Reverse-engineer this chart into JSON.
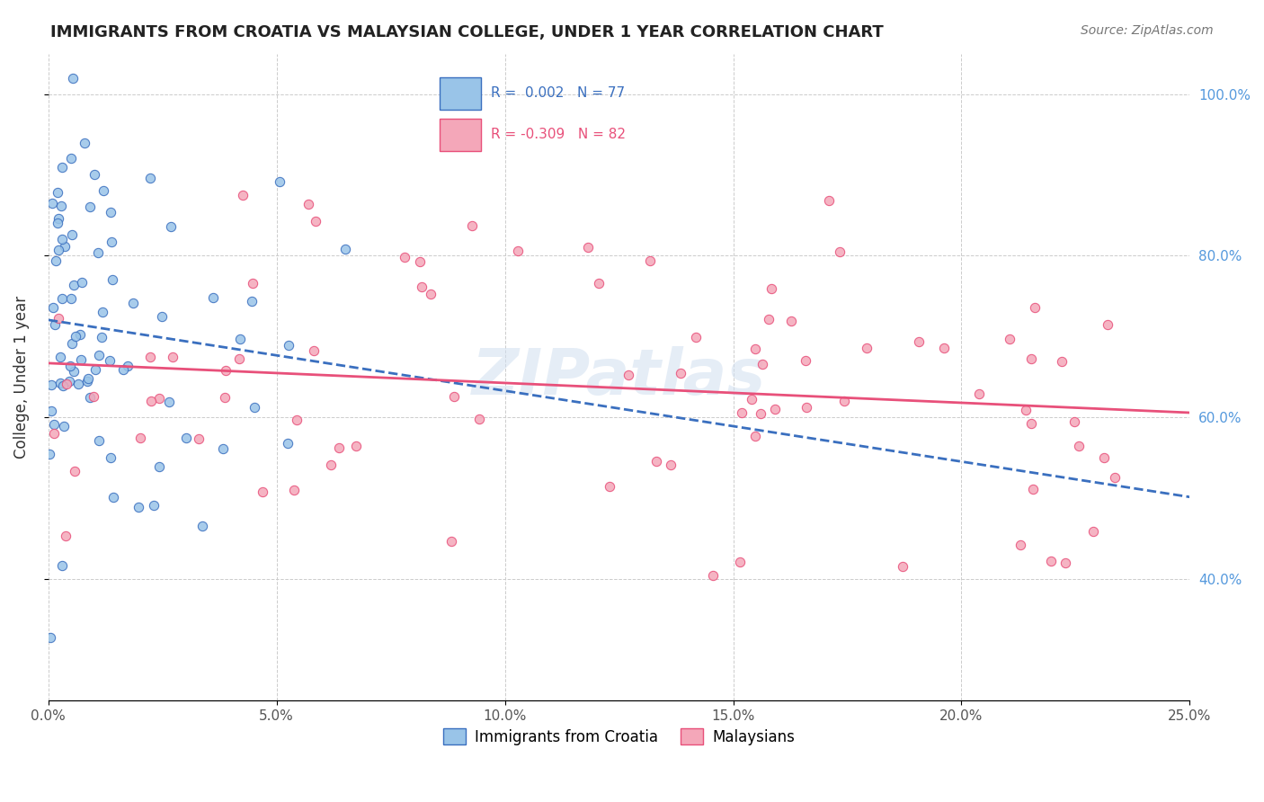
{
  "title": "IMMIGRANTS FROM CROATIA VS MALAYSIAN COLLEGE, UNDER 1 YEAR CORRELATION CHART",
  "source": "Source: ZipAtlas.com",
  "ylabel": "College, Under 1 year",
  "legend_entry1": "R =  0.002   N = 77",
  "legend_entry2": "R = -0.309   N = 82",
  "legend_label1": "Immigrants from Croatia",
  "legend_label2": "Malaysians",
  "color_croatia": "#99c4e8",
  "color_malaysia": "#f4a7b9",
  "color_line_croatia": "#3a6fbf",
  "color_line_malaysia": "#e8507a",
  "R_croatia": 0.002,
  "N_croatia": 77,
  "R_malaysia": -0.309,
  "N_malaysia": 82,
  "xmin": 0.0,
  "xmax": 0.25,
  "ymin": 0.25,
  "ymax": 1.05,
  "seed": 42,
  "watermark": "ZIPatlas",
  "background_color": "#ffffff"
}
